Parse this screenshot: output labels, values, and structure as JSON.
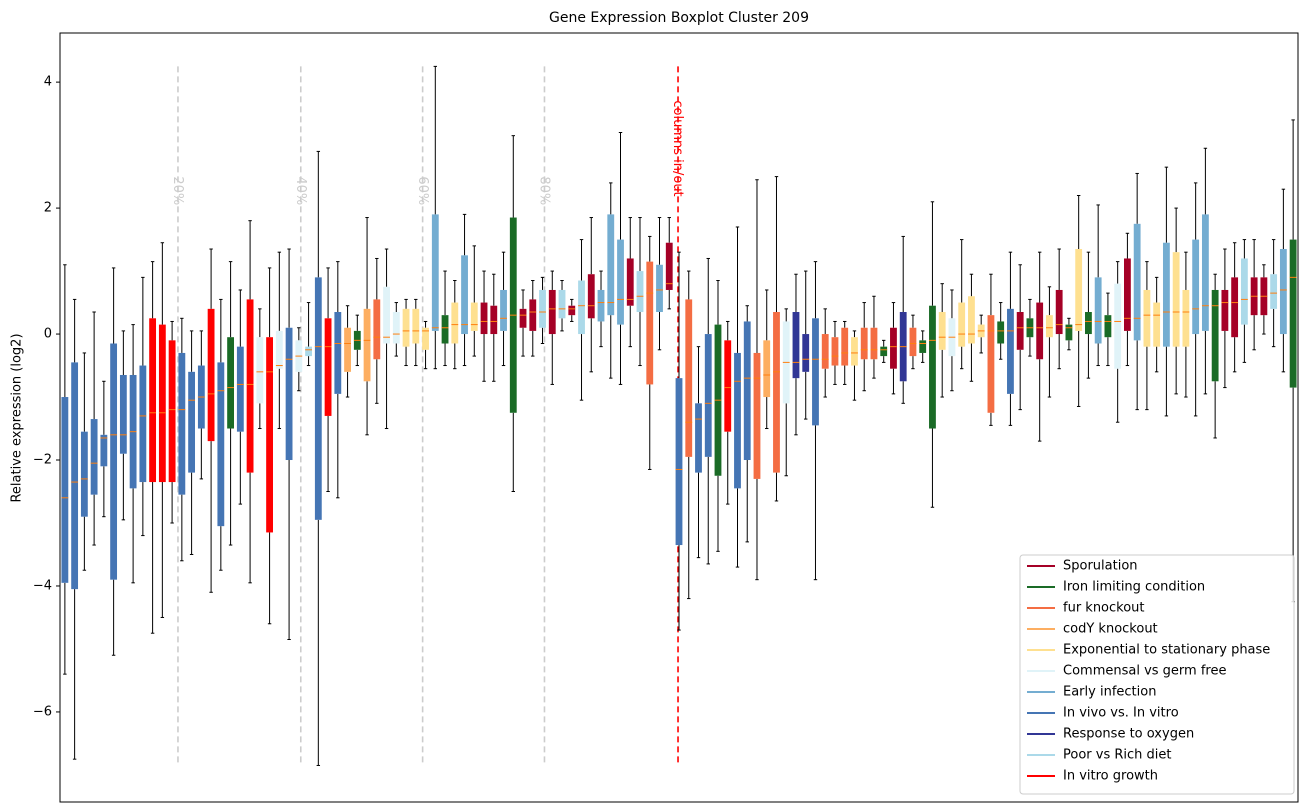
{
  "chart_data": {
    "type": "boxplot",
    "title": "Gene Expression Boxplot Cluster 209",
    "ylabel": "Relative expression (log2)",
    "xlim": [
      0.5,
      127.5
    ],
    "ylim": [
      -7.43,
      4.78
    ],
    "yticks": [
      {
        "value": -6,
        "label": "−6"
      },
      {
        "value": -4,
        "label": "−4"
      },
      {
        "value": -2,
        "label": "−2"
      },
      0,
      2,
      4
    ],
    "legend": "lower right",
    "median_color": "#ff7f0e",
    "vlines": [
      {
        "x": 12.6,
        "label": "20%",
        "color": "#cccccc"
      },
      {
        "x": 25.2,
        "label": "40%",
        "color": "#cccccc"
      },
      {
        "x": 37.7,
        "label": "60%",
        "color": "#cccccc"
      },
      {
        "x": 50.2,
        "label": "80%",
        "color": "#cccccc"
      },
      {
        "x": 63.9,
        "label": "columns in/out",
        "color": "#ff0000"
      }
    ],
    "series": [
      {
        "name": "Sporulation",
        "color": "#a50026",
        "x": [
          44,
          45,
          48,
          49,
          51,
          53,
          55,
          59,
          63,
          86,
          99,
          101,
          103,
          110,
          120,
          121,
          123,
          124
        ],
        "stats": [
          [
            -0.75,
            0.0,
            0.2,
            0.5,
            1.0
          ],
          [
            -0.75,
            0.0,
            0.2,
            0.45,
            0.95
          ],
          [
            -0.35,
            0.1,
            0.3,
            0.4,
            0.7
          ],
          [
            -0.35,
            0.05,
            0.35,
            0.55,
            0.85
          ],
          [
            -0.8,
            0.0,
            0.4,
            0.7,
            1.0
          ],
          [
            0.2,
            0.3,
            0.4,
            0.45,
            0.55
          ],
          [
            -0.6,
            0.25,
            0.45,
            0.95,
            1.85
          ],
          [
            -0.2,
            0.45,
            0.55,
            1.2,
            1.85
          ],
          [
            0.4,
            0.7,
            0.8,
            1.45,
            1.85
          ],
          [
            -0.95,
            -0.55,
            -0.2,
            0.1,
            0.5
          ],
          [
            -1.2,
            -0.25,
            0.1,
            0.35,
            1.1
          ],
          [
            -1.7,
            -0.4,
            0.1,
            0.5,
            1.3
          ],
          [
            -0.55,
            0.0,
            0.15,
            0.7,
            1.35
          ],
          [
            -0.5,
            0.05,
            0.25,
            1.2,
            1.6
          ],
          [
            -0.85,
            0.05,
            0.5,
            0.7,
            1.35
          ],
          [
            -0.6,
            -0.05,
            0.5,
            0.9,
            1.45
          ],
          [
            -0.25,
            0.3,
            0.6,
            0.9,
            1.5
          ],
          [
            0.0,
            0.3,
            0.6,
            0.9,
            1.1
          ]
        ]
      },
      {
        "name": "Iron limiting condition",
        "color": "#1a6b26",
        "x": [
          18,
          31,
          40,
          47,
          68,
          85,
          89,
          90,
          97,
          100,
          104,
          106,
          108,
          119,
          127
        ],
        "stats": [
          [
            -3.35,
            -1.5,
            -0.85,
            -0.05,
            1.15
          ],
          [
            -0.5,
            -0.25,
            -0.1,
            0.05,
            0.3
          ],
          [
            -0.5,
            -0.15,
            0.1,
            0.3,
            1.0
          ],
          [
            -2.5,
            -1.25,
            0.3,
            1.85,
            3.15
          ],
          [
            -3.45,
            -2.25,
            -1.05,
            0.15,
            0.85
          ],
          [
            -0.45,
            -0.35,
            -0.25,
            -0.2,
            -0.1
          ],
          [
            -0.45,
            -0.3,
            -0.15,
            -0.1,
            0.05
          ],
          [
            -2.75,
            -1.5,
            -0.1,
            0.45,
            2.1
          ],
          [
            -0.4,
            -0.15,
            0.05,
            0.2,
            0.5
          ],
          [
            -0.35,
            -0.05,
            0.1,
            0.25,
            0.55
          ],
          [
            -0.25,
            -0.1,
            0.1,
            0.15,
            0.25
          ],
          [
            -0.7,
            0.0,
            0.2,
            0.35,
            1.3
          ],
          [
            -0.5,
            -0.05,
            0.2,
            0.3,
            0.65
          ],
          [
            -1.65,
            -0.75,
            0.45,
            0.7,
            0.95
          ],
          [
            -4.25,
            -0.85,
            0.9,
            1.5,
            3.4
          ]
        ]
      },
      {
        "name": "fur knockout",
        "color": "#f46d43",
        "x": [
          33,
          61,
          65,
          72,
          74,
          79,
          80,
          81,
          83,
          84,
          88,
          96
        ],
        "stats": [
          [
            -1.1,
            -0.4,
            -0.05,
            0.55,
            1.2
          ],
          [
            -2.15,
            -0.8,
            0.65,
            1.15,
            1.55
          ],
          [
            -4.2,
            -1.95,
            -1.4,
            0.55,
            1.0
          ],
          [
            -3.9,
            -2.3,
            -0.7,
            -0.3,
            2.45
          ],
          [
            -2.65,
            -2.2,
            -0.6,
            0.35,
            2.5
          ],
          [
            -1.0,
            -0.55,
            -0.4,
            0.0,
            0.4
          ],
          [
            -0.8,
            -0.5,
            -0.35,
            -0.05,
            0.2
          ],
          [
            -0.8,
            -0.5,
            -0.3,
            0.1,
            0.2
          ],
          [
            -0.9,
            -0.4,
            -0.25,
            0.1,
            0.5
          ],
          [
            -0.7,
            -0.4,
            -0.25,
            0.1,
            0.6
          ],
          [
            -0.55,
            -0.35,
            -0.15,
            0.1,
            0.3
          ],
          [
            -1.45,
            -1.25,
            0.05,
            0.3,
            0.95
          ]
        ]
      },
      {
        "name": "codY knockout",
        "color": "#fdae61",
        "x": [
          30,
          32,
          73
        ],
        "stats": [
          [
            -1.0,
            -0.6,
            -0.15,
            0.1,
            0.45
          ],
          [
            -1.6,
            -0.75,
            -0.1,
            0.4,
            1.85
          ],
          [
            -1.5,
            -1.0,
            -0.65,
            -0.1,
            0.7
          ]
        ]
      },
      {
        "name": "Exponential to stationary phase",
        "color": "#fee090",
        "x": [
          36,
          37,
          38,
          41,
          43,
          82,
          91,
          93,
          94,
          95,
          102,
          105,
          112,
          113,
          115,
          116
        ],
        "stats": [
          [
            -0.5,
            -0.2,
            0.05,
            0.4,
            0.55
          ],
          [
            -0.5,
            -0.15,
            0.05,
            0.4,
            0.55
          ],
          [
            -0.55,
            -0.25,
            0.05,
            0.1,
            0.2
          ],
          [
            -0.55,
            -0.15,
            0.15,
            0.5,
            0.85
          ],
          [
            -0.35,
            0.05,
            0.15,
            0.5,
            1.4
          ],
          [
            -1.05,
            -0.5,
            -0.3,
            -0.05,
            0.05
          ],
          [
            -1.0,
            -0.25,
            -0.05,
            0.35,
            0.8
          ],
          [
            -0.55,
            -0.2,
            0.0,
            0.5,
            1.5
          ],
          [
            -0.75,
            -0.15,
            0.0,
            0.6,
            0.95
          ],
          [
            -0.3,
            -0.05,
            0.05,
            0.15,
            0.3
          ],
          [
            -1.0,
            -0.05,
            0.1,
            0.3,
            0.75
          ],
          [
            -1.15,
            0.05,
            0.15,
            1.35,
            2.2
          ],
          [
            -1.2,
            -0.2,
            0.3,
            0.7,
            1.15
          ],
          [
            -0.6,
            -0.2,
            0.3,
            0.5,
            0.9
          ],
          [
            -0.95,
            -0.2,
            0.35,
            1.3,
            2.0
          ],
          [
            -1.0,
            -0.2,
            0.35,
            0.7,
            1.3
          ]
        ]
      },
      {
        "name": "Commensal vs germ free",
        "color": "#e0f3f8",
        "x": [
          21,
          23,
          25,
          34,
          35,
          75,
          92,
          109
        ],
        "stats": [
          [
            -1.5,
            -1.1,
            -0.6,
            -0.05,
            0.4
          ],
          [
            -1.5,
            -0.55,
            -0.5,
            0.05,
            1.3
          ],
          [
            -0.9,
            -0.6,
            -0.35,
            -0.1,
            0.1
          ],
          [
            -1.5,
            -0.15,
            -0.05,
            0.75,
            1.35
          ],
          [
            -0.35,
            -0.15,
            0.0,
            0.35,
            0.5
          ],
          [
            -2.25,
            -1.1,
            -0.45,
            0.2,
            0.4
          ],
          [
            -0.9,
            -0.35,
            -0.05,
            0.25,
            0.7
          ],
          [
            -1.4,
            -0.55,
            0.2,
            0.8,
            1.15
          ]
        ]
      },
      {
        "name": "Early infection",
        "color": "#74add1",
        "x": [
          39,
          42,
          46,
          56,
          57,
          58,
          62,
          107,
          111,
          114,
          117,
          118,
          126
        ],
        "stats": [
          [
            -0.55,
            0.05,
            0.1,
            1.9,
            4.25
          ],
          [
            -0.5,
            0.0,
            0.15,
            1.25,
            1.9
          ],
          [
            -0.5,
            0.05,
            0.25,
            0.7,
            1.3
          ],
          [
            -0.2,
            0.2,
            0.5,
            0.7,
            1.0
          ],
          [
            -0.7,
            0.3,
            0.5,
            1.9,
            2.4
          ],
          [
            -0.8,
            0.15,
            0.55,
            1.5,
            3.2
          ],
          [
            -0.25,
            0.35,
            0.7,
            1.1,
            1.85
          ],
          [
            -0.5,
            -0.15,
            0.2,
            0.9,
            2.05
          ],
          [
            -1.2,
            -0.1,
            0.25,
            1.75,
            2.55
          ],
          [
            -1.3,
            -0.2,
            0.35,
            1.45,
            2.65
          ],
          [
            -1.3,
            0.0,
            0.4,
            1.5,
            2.4
          ],
          [
            -0.95,
            0.05,
            0.45,
            1.9,
            2.95
          ],
          [
            -0.6,
            0.0,
            0.7,
            1.35,
            2.3
          ]
        ]
      },
      {
        "name": "In vivo vs. In vitro",
        "color": "#4575b4",
        "x": [
          1,
          2,
          3,
          4,
          5,
          6,
          7,
          8,
          9,
          13,
          14,
          15,
          17,
          19,
          24,
          27,
          29,
          64,
          66,
          67,
          70,
          71,
          78,
          98
        ],
        "stats": [
          [
            -5.4,
            -3.95,
            -2.6,
            -1.0,
            1.1
          ],
          [
            -6.75,
            -4.05,
            -2.35,
            -0.45,
            0.55
          ],
          [
            -3.75,
            -2.9,
            -2.3,
            -1.55,
            -0.3
          ],
          [
            -3.35,
            -2.55,
            -2.05,
            -1.35,
            0.35
          ],
          [
            -2.9,
            -2.1,
            -1.65,
            -1.6,
            -0.75
          ],
          [
            -5.1,
            -3.9,
            -1.6,
            -0.15,
            1.05
          ],
          [
            -2.95,
            -1.9,
            -1.6,
            -0.65,
            0.05
          ],
          [
            -3.95,
            -2.45,
            -1.55,
            -0.65,
            0.15
          ],
          [
            -3.2,
            -2.35,
            -1.3,
            -0.5,
            0.9
          ],
          [
            -3.6,
            -2.55,
            -1.2,
            -0.3,
            0.25
          ],
          [
            -3.5,
            -2.2,
            -1.05,
            -0.6,
            0.05
          ],
          [
            -2.3,
            -1.5,
            -1.0,
            -0.5,
            0.05
          ],
          [
            -3.75,
            -3.05,
            -0.9,
            -0.45,
            0.55
          ],
          [
            -2.7,
            -1.55,
            -0.8,
            -0.2,
            0.7
          ],
          [
            -4.85,
            -2.0,
            -0.4,
            0.1,
            1.35
          ],
          [
            -6.85,
            -2.95,
            -0.2,
            0.9,
            2.9
          ],
          [
            -2.6,
            -0.95,
            -0.15,
            0.35,
            1.15
          ],
          [
            -4.7,
            -3.35,
            -2.15,
            -0.7,
            1.3
          ],
          [
            -3.55,
            -2.2,
            -1.35,
            -1.1,
            -0.2
          ],
          [
            -3.65,
            -1.95,
            -1.1,
            0.0,
            1.2
          ],
          [
            -3.7,
            -2.45,
            -0.75,
            -0.3,
            1.7
          ],
          [
            -3.3,
            -2.0,
            -0.7,
            0.2,
            0.45
          ],
          [
            -3.9,
            -1.45,
            -0.4,
            0.25,
            1.15
          ],
          [
            -1.45,
            -0.95,
            0.05,
            0.4,
            1.3
          ]
        ]
      },
      {
        "name": "Response to oxygen",
        "color": "#313695",
        "x": [
          76,
          77,
          87
        ],
        "stats": [
          [
            -1.6,
            -0.7,
            -0.45,
            0.35,
            0.95
          ],
          [
            -1.35,
            -0.6,
            -0.4,
            0.0,
            1.0
          ],
          [
            -1.1,
            -0.75,
            -0.2,
            0.35,
            1.55
          ]
        ]
      },
      {
        "name": "Poor vs Rich diet",
        "color": "#abd9e9",
        "x": [
          26,
          50,
          52,
          54,
          60,
          122,
          125
        ],
        "stats": [
          [
            -0.5,
            -0.35,
            -0.25,
            -0.2,
            0.5
          ],
          [
            -0.15,
            0.1,
            0.35,
            0.7,
            0.9
          ],
          [
            0.05,
            0.25,
            0.4,
            0.7,
            0.85
          ],
          [
            -1.05,
            0.0,
            0.45,
            0.85,
            1.5
          ],
          [
            -0.5,
            0.35,
            0.6,
            1.0,
            1.85
          ],
          [
            -0.45,
            0.15,
            0.55,
            1.2,
            1.5
          ],
          [
            -0.2,
            0.4,
            0.65,
            0.95,
            1.5
          ]
        ]
      },
      {
        "name": "In vitro growth",
        "color": "#ff0000",
        "x": [
          10,
          11,
          12,
          16,
          20,
          22,
          28,
          69
        ],
        "stats": [
          [
            -4.75,
            -2.35,
            -1.25,
            0.25,
            1.15
          ],
          [
            -4.5,
            -2.35,
            -1.25,
            0.15,
            1.45
          ],
          [
            -3.0,
            -2.35,
            -1.2,
            -0.1,
            0.2
          ],
          [
            -4.1,
            -1.7,
            -0.95,
            0.4,
            1.35
          ],
          [
            -3.95,
            -2.2,
            -0.8,
            0.55,
            1.8
          ],
          [
            -4.6,
            -3.15,
            -0.6,
            -0.05,
            1.05
          ],
          [
            -2.5,
            -1.3,
            -0.2,
            0.25,
            1.05
          ],
          [
            -2.7,
            -1.55,
            -0.85,
            -0.1,
            0.2
          ]
        ]
      }
    ]
  }
}
